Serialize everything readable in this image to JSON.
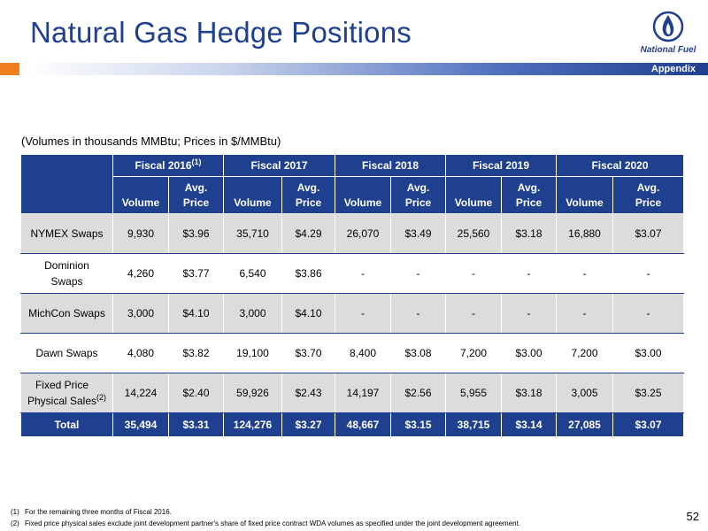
{
  "header": {
    "title": "Natural Gas Hedge Positions",
    "section_tab": "Appendix",
    "logo_text": "National Fuel"
  },
  "units_note": "(Volumes in thousands MMBtu; Prices in $/MMBtu)",
  "table": {
    "fiscal_years": [
      {
        "label": "Fiscal 2016",
        "footnote": "(1)"
      },
      {
        "label": "Fiscal 2017",
        "footnote": ""
      },
      {
        "label": "Fiscal 2018",
        "footnote": ""
      },
      {
        "label": "Fiscal 2019",
        "footnote": ""
      },
      {
        "label": "Fiscal 2020",
        "footnote": ""
      }
    ],
    "subheaders": {
      "volume": "Volume",
      "price_line1": "Avg.",
      "price_line2": "Price"
    },
    "rows": [
      {
        "label": "NYMEX Swaps",
        "footnote": "",
        "cells": [
          "9,930",
          "$3.96",
          "35,710",
          "$4.29",
          "26,070",
          "$3.49",
          "25,560",
          "$3.18",
          "16,880",
          "$3.07"
        ]
      },
      {
        "label_line1": "Dominion",
        "label_line2": "Swaps",
        "footnote": "",
        "cells": [
          "4,260",
          "$3.77",
          "6,540",
          "$3.86",
          "-",
          "-",
          "-",
          "-",
          "-",
          "-"
        ]
      },
      {
        "label": "MichCon Swaps",
        "footnote": "",
        "cells": [
          "3,000",
          "$4.10",
          "3,000",
          "$4.10",
          "-",
          "-",
          "-",
          "-",
          "-",
          "-"
        ]
      },
      {
        "label": "Dawn Swaps",
        "footnote": "",
        "cells": [
          "4,080",
          "$3.82",
          "19,100",
          "$3.70",
          "8,400",
          "$3.08",
          "7,200",
          "$3.00",
          "7,200",
          "$3.00"
        ]
      },
      {
        "label_line1": "Fixed Price",
        "label_line2": "Physical Sales",
        "footnote": "(2)",
        "cells": [
          "14,224",
          "$2.40",
          "59,926",
          "$2.43",
          "14,197",
          "$2.56",
          "5,955",
          "$3.18",
          "3,005",
          "$3.25"
        ]
      }
    ],
    "total": {
      "label": "Total",
      "cells": [
        "35,494",
        "$3.31",
        "124,276",
        "$3.27",
        "48,667",
        "$3.15",
        "38,715",
        "$3.14",
        "27,085",
        "$3.07"
      ]
    }
  },
  "footnotes": [
    {
      "num": "(1)",
      "text": "For the remaining three months of Fiscal 2016."
    },
    {
      "num": "(2)",
      "text": "Fixed price physical sales exclude joint development partner's share of fixed price contract WDA volumes as specified under the joint development agreement."
    }
  ],
  "page_number": "52",
  "colors": {
    "brand_blue": "#1f3f8f",
    "accent_orange": "#f07f22",
    "row_shade": "#dcdcdc"
  }
}
